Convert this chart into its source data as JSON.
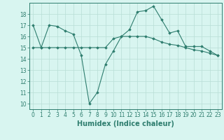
{
  "xlabel": "Humidex (Indice chaleur)",
  "x": [
    0,
    1,
    2,
    3,
    4,
    5,
    6,
    7,
    8,
    9,
    10,
    11,
    12,
    13,
    14,
    15,
    16,
    17,
    18,
    19,
    20,
    21,
    22,
    23
  ],
  "line1": [
    17.0,
    15.0,
    17.0,
    16.9,
    16.5,
    16.2,
    14.3,
    10.0,
    11.0,
    13.5,
    14.7,
    16.0,
    16.6,
    18.2,
    18.3,
    18.7,
    17.5,
    16.3,
    16.5,
    15.1,
    15.1,
    15.1,
    14.7,
    14.3
  ],
  "line2": [
    15.0,
    15.0,
    15.0,
    15.0,
    15.0,
    15.0,
    15.0,
    15.0,
    15.0,
    15.0,
    15.8,
    16.0,
    16.0,
    16.0,
    16.0,
    15.8,
    15.5,
    15.3,
    15.2,
    15.0,
    14.8,
    14.7,
    14.5,
    14.3
  ],
  "line_color": "#2e7d6e",
  "bg_color": "#d8f5f0",
  "grid_color": "#b8ddd6",
  "ylim": [
    9.5,
    19.0
  ],
  "yticks": [
    10,
    11,
    12,
    13,
    14,
    15,
    16,
    17,
    18
  ],
  "xticks": [
    0,
    1,
    2,
    3,
    4,
    5,
    6,
    7,
    8,
    9,
    10,
    11,
    12,
    13,
    14,
    15,
    16,
    17,
    18,
    19,
    20,
    21,
    22,
    23
  ],
  "tick_fontsize": 5.5,
  "label_fontsize": 7.0
}
